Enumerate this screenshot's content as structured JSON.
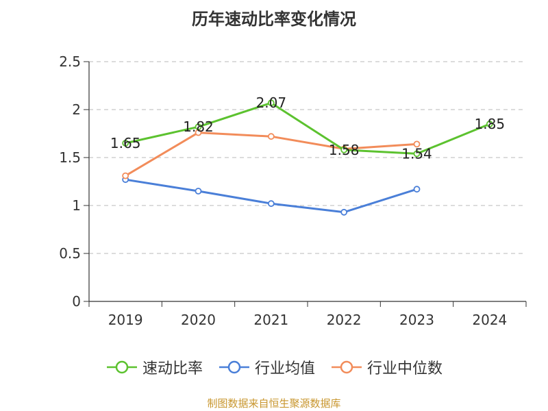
{
  "chart_data": {
    "type": "line",
    "title": "历年速动比率变化情况",
    "categories": [
      "2019",
      "2020",
      "2021",
      "2022",
      "2023",
      "2024"
    ],
    "ylim": [
      0,
      2.5
    ],
    "yticks": [
      "0",
      "0.5",
      "1",
      "1.5",
      "2",
      "2.5"
    ],
    "grid": true,
    "legend_position": "bottom",
    "series": [
      {
        "name": "速动比率",
        "color": "#5cc22f",
        "values": [
          1.65,
          1.82,
          2.07,
          1.58,
          1.54,
          1.85
        ],
        "labels": [
          "1.65",
          "1.82",
          "2.07",
          "1.58",
          "1.54",
          "1.85"
        ]
      },
      {
        "name": "行业均值",
        "color": "#4a7fd8",
        "values": [
          1.27,
          1.15,
          1.02,
          0.93,
          1.17,
          null
        ]
      },
      {
        "name": "行业中位数",
        "color": "#f28c5a",
        "values": [
          1.31,
          1.76,
          1.72,
          1.59,
          1.64,
          null
        ]
      }
    ]
  },
  "source": "制图数据来自恒生聚源数据库"
}
